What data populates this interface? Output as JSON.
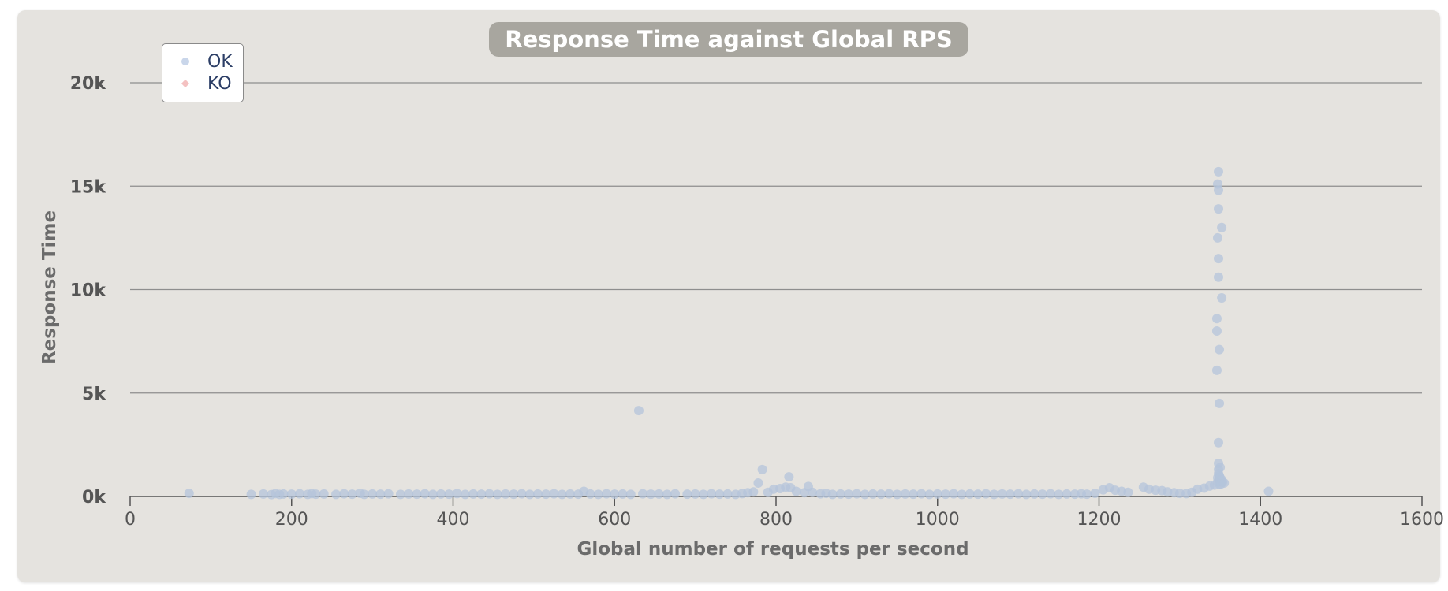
{
  "chart_data": {
    "type": "scatter",
    "title": "Response Time against Global RPS",
    "xlabel": "Global number of requests per second",
    "ylabel": "Response Time",
    "xlim": [
      0,
      1600
    ],
    "ylim": [
      0,
      20000
    ],
    "x_ticks": [
      {
        "value": 0,
        "label": "0"
      },
      {
        "value": 200,
        "label": "200"
      },
      {
        "value": 400,
        "label": "400"
      },
      {
        "value": 600,
        "label": "600"
      },
      {
        "value": 800,
        "label": "800"
      },
      {
        "value": 1000,
        "label": "1000"
      },
      {
        "value": 1200,
        "label": "1200"
      },
      {
        "value": 1400,
        "label": "1400"
      },
      {
        "value": 1600,
        "label": "1600"
      }
    ],
    "y_ticks": [
      {
        "value": 0,
        "label": "0k"
      },
      {
        "value": 5000,
        "label": "5k"
      },
      {
        "value": 10000,
        "label": "10k"
      },
      {
        "value": 15000,
        "label": "15k"
      },
      {
        "value": 20000,
        "label": "20k"
      }
    ],
    "grid": "horizontal",
    "legend_position": "top-left",
    "series": [
      {
        "name": "OK",
        "marker": "circle",
        "color": "#b8c7dd",
        "points": [
          [
            73,
            150
          ],
          [
            150,
            100
          ],
          [
            165,
            120
          ],
          [
            175,
            90
          ],
          [
            180,
            140
          ],
          [
            185,
            100
          ],
          [
            190,
            120
          ],
          [
            200,
            110
          ],
          [
            210,
            130
          ],
          [
            220,
            100
          ],
          [
            225,
            140
          ],
          [
            230,
            110
          ],
          [
            240,
            120
          ],
          [
            255,
            100
          ],
          [
            265,
            130
          ],
          [
            275,
            110
          ],
          [
            285,
            150
          ],
          [
            290,
            100
          ],
          [
            300,
            120
          ],
          [
            310,
            110
          ],
          [
            320,
            130
          ],
          [
            335,
            100
          ],
          [
            345,
            120
          ],
          [
            355,
            110
          ],
          [
            365,
            130
          ],
          [
            375,
            100
          ],
          [
            385,
            120
          ],
          [
            395,
            110
          ],
          [
            405,
            140
          ],
          [
            415,
            100
          ],
          [
            425,
            120
          ],
          [
            435,
            110
          ],
          [
            445,
            130
          ],
          [
            455,
            100
          ],
          [
            465,
            120
          ],
          [
            475,
            110
          ],
          [
            485,
            130
          ],
          [
            495,
            100
          ],
          [
            505,
            120
          ],
          [
            515,
            110
          ],
          [
            525,
            130
          ],
          [
            535,
            100
          ],
          [
            545,
            120
          ],
          [
            555,
            110
          ],
          [
            562,
            250
          ],
          [
            570,
            120
          ],
          [
            580,
            100
          ],
          [
            590,
            130
          ],
          [
            600,
            110
          ],
          [
            610,
            120
          ],
          [
            620,
            100
          ],
          [
            630,
            4150
          ],
          [
            635,
            130
          ],
          [
            645,
            110
          ],
          [
            655,
            120
          ],
          [
            665,
            100
          ],
          [
            675,
            130
          ],
          [
            690,
            110
          ],
          [
            700,
            120
          ],
          [
            710,
            100
          ],
          [
            720,
            130
          ],
          [
            730,
            110
          ],
          [
            740,
            120
          ],
          [
            750,
            100
          ],
          [
            758,
            140
          ],
          [
            765,
            180
          ],
          [
            772,
            220
          ],
          [
            778,
            650
          ],
          [
            783,
            1300
          ],
          [
            790,
            200
          ],
          [
            797,
            350
          ],
          [
            805,
            380
          ],
          [
            812,
            450
          ],
          [
            816,
            950
          ],
          [
            818,
            420
          ],
          [
            825,
            250
          ],
          [
            835,
            180
          ],
          [
            840,
            480
          ],
          [
            845,
            200
          ],
          [
            855,
            130
          ],
          [
            862,
            150
          ],
          [
            870,
            100
          ],
          [
            880,
            120
          ],
          [
            890,
            110
          ],
          [
            900,
            130
          ],
          [
            910,
            100
          ],
          [
            920,
            120
          ],
          [
            930,
            110
          ],
          [
            940,
            130
          ],
          [
            950,
            100
          ],
          [
            960,
            120
          ],
          [
            970,
            110
          ],
          [
            980,
            130
          ],
          [
            990,
            100
          ],
          [
            1000,
            120
          ],
          [
            1010,
            110
          ],
          [
            1020,
            130
          ],
          [
            1030,
            100
          ],
          [
            1040,
            120
          ],
          [
            1050,
            110
          ],
          [
            1060,
            130
          ],
          [
            1070,
            100
          ],
          [
            1080,
            120
          ],
          [
            1090,
            110
          ],
          [
            1100,
            130
          ],
          [
            1110,
            100
          ],
          [
            1120,
            120
          ],
          [
            1130,
            110
          ],
          [
            1140,
            130
          ],
          [
            1150,
            100
          ],
          [
            1160,
            120
          ],
          [
            1170,
            110
          ],
          [
            1178,
            130
          ],
          [
            1185,
            110
          ],
          [
            1195,
            150
          ],
          [
            1205,
            320
          ],
          [
            1213,
            420
          ],
          [
            1220,
            300
          ],
          [
            1228,
            250
          ],
          [
            1236,
            200
          ],
          [
            1255,
            450
          ],
          [
            1262,
            350
          ],
          [
            1270,
            300
          ],
          [
            1278,
            280
          ],
          [
            1285,
            220
          ],
          [
            1293,
            180
          ],
          [
            1300,
            150
          ],
          [
            1308,
            140
          ],
          [
            1315,
            200
          ],
          [
            1322,
            350
          ],
          [
            1330,
            400
          ],
          [
            1337,
            500
          ],
          [
            1343,
            550
          ],
          [
            1346,
            6100
          ],
          [
            1346,
            8000
          ],
          [
            1346,
            8600
          ],
          [
            1347,
            15100
          ],
          [
            1347,
            12500
          ],
          [
            1347,
            900
          ],
          [
            1347,
            700
          ],
          [
            1348,
            15700
          ],
          [
            1348,
            14800
          ],
          [
            1348,
            13900
          ],
          [
            1348,
            11500
          ],
          [
            1348,
            10600
          ],
          [
            1348,
            2600
          ],
          [
            1348,
            1600
          ],
          [
            1348,
            1300
          ],
          [
            1348,
            1100
          ],
          [
            1349,
            7100
          ],
          [
            1349,
            4500
          ],
          [
            1349,
            1000
          ],
          [
            1349,
            800
          ],
          [
            1349,
            600
          ],
          [
            1350,
            1400
          ],
          [
            1350,
            900
          ],
          [
            1350,
            750
          ],
          [
            1351,
            600
          ],
          [
            1352,
            13000
          ],
          [
            1352,
            9600
          ],
          [
            1352,
            800
          ],
          [
            1353,
            700
          ],
          [
            1355,
            650
          ],
          [
            1410,
            250
          ]
        ]
      },
      {
        "name": "KO",
        "marker": "diamond",
        "color": "#f2b9b9",
        "points": []
      }
    ]
  }
}
